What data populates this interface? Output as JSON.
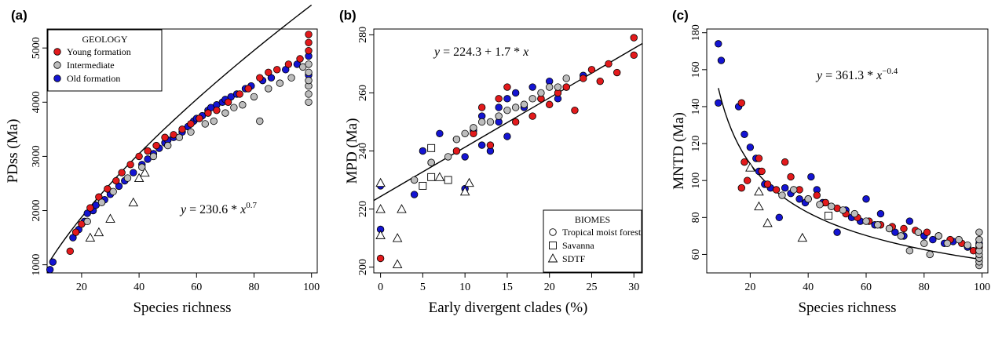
{
  "colors": {
    "young": "#e31a1c",
    "intermediate": "#bdbdbd",
    "old": "#1414d2",
    "stroke": "#000000"
  },
  "chart_data": [
    {
      "type": "scatter",
      "panel_label": "(a)",
      "xlabel": "Species richness",
      "ylabel": "PDss (Ma)",
      "xlim": [
        8,
        102
      ],
      "ylim": [
        850,
        5350
      ],
      "xticks": [
        20,
        40,
        60,
        80,
        100
      ],
      "yticks": [
        1000,
        2000,
        3000,
        4000,
        5000
      ],
      "equation": {
        "lhs": "y",
        "mid": " = 230.6 * ",
        "var": "x",
        "exp": "0.7"
      },
      "fit": {
        "kind": "power",
        "a": 230.6,
        "b": 0.7,
        "x_range": [
          9,
          100
        ]
      },
      "legend": {
        "position": "top-left",
        "title": "GEOLOGY",
        "entries": [
          {
            "label": "Young formation",
            "color_key": "young"
          },
          {
            "label": "Intermediate",
            "color_key": "intermediate"
          },
          {
            "label": "Old formation",
            "color_key": "old"
          }
        ]
      },
      "series": [
        {
          "color_key": "old",
          "shape": "circle",
          "x": [
            9,
            10,
            17,
            19,
            21,
            22,
            24,
            25,
            28,
            30,
            33,
            35,
            38,
            41,
            43,
            45,
            47,
            49,
            50,
            52,
            55,
            57,
            59,
            60,
            62,
            64,
            65,
            67,
            69,
            70,
            72,
            74,
            77,
            79,
            83,
            86,
            91,
            95,
            99,
            99
          ],
          "y": [
            910,
            1050,
            1500,
            1650,
            1800,
            1950,
            2000,
            2100,
            2200,
            2300,
            2450,
            2550,
            2700,
            2850,
            2950,
            3050,
            3150,
            3250,
            3300,
            3350,
            3450,
            3550,
            3650,
            3700,
            3750,
            3850,
            3900,
            3950,
            4000,
            4050,
            4100,
            4150,
            4250,
            4300,
            4400,
            4450,
            4600,
            4700,
            4500,
            4850
          ]
        },
        {
          "color_key": "young",
          "shape": "circle",
          "x": [
            16,
            18,
            20,
            23,
            26,
            29,
            32,
            34,
            37,
            40,
            43,
            46,
            49,
            52,
            55,
            58,
            61,
            64,
            67,
            71,
            75,
            78,
            82,
            85,
            88,
            92,
            96,
            99,
            99,
            99
          ],
          "y": [
            1250,
            1600,
            1750,
            2050,
            2250,
            2400,
            2550,
            2700,
            2850,
            3000,
            3100,
            3200,
            3350,
            3400,
            3500,
            3600,
            3700,
            3800,
            3850,
            4000,
            4150,
            4250,
            4450,
            4550,
            4600,
            4700,
            4800,
            4950,
            5100,
            5250
          ]
        },
        {
          "color_key": "intermediate",
          "shape": "circle",
          "x": [
            22,
            27,
            31,
            36,
            41,
            45,
            50,
            54,
            58,
            63,
            66,
            70,
            73,
            76,
            80,
            82,
            85,
            89,
            93,
            97,
            99,
            99,
            99,
            99,
            99,
            99
          ],
          "y": [
            1800,
            2150,
            2350,
            2600,
            2800,
            3000,
            3200,
            3350,
            3450,
            3600,
            3650,
            3800,
            3900,
            3950,
            4100,
            3650,
            4250,
            4350,
            4450,
            4650,
            4000,
            4150,
            4300,
            4400,
            4550,
            4700
          ]
        },
        {
          "color_key": "none",
          "shape": "triangle",
          "x": [
            23,
            26,
            30,
            38,
            40,
            42
          ],
          "y": [
            1500,
            1600,
            1850,
            2150,
            2600,
            2700
          ]
        }
      ]
    },
    {
      "type": "scatter",
      "panel_label": "(b)",
      "xlabel": "Early divergent clades (%)",
      "ylabel": "MPD (Ma)",
      "xlim": [
        -0.8,
        31
      ],
      "ylim": [
        198,
        282
      ],
      "xticks": [
        0,
        5,
        10,
        15,
        20,
        25,
        30
      ],
      "yticks": [
        200,
        220,
        240,
        260,
        280
      ],
      "equation": {
        "lhs": "y",
        "mid": " = 224.3 + 1.7 * ",
        "var": "x",
        "exp": ""
      },
      "fit": {
        "kind": "linear",
        "a": 224.3,
        "b": 1.7,
        "x_range": [
          -0.8,
          31
        ]
      },
      "legend": {
        "position": "bottom-right",
        "title": "BIOMES",
        "entries": [
          {
            "label": "Tropical moist forest",
            "shape": "circle"
          },
          {
            "label": "Savanna",
            "shape": "square"
          },
          {
            "label": "SDTF",
            "shape": "triangle"
          }
        ]
      },
      "series": [
        {
          "color_key": "old",
          "shape": "circle",
          "x": [
            0,
            0,
            4,
            5,
            6,
            7,
            8,
            9,
            10,
            10,
            11,
            12,
            12,
            13,
            14,
            14,
            15,
            15,
            16,
            17,
            18,
            19,
            20,
            21,
            22,
            24
          ],
          "y": [
            213,
            228,
            225,
            240,
            236,
            246,
            230,
            244,
            227,
            238,
            247,
            242,
            252,
            240,
            250,
            255,
            245,
            258,
            260,
            255,
            262,
            258,
            264,
            258,
            262,
            266
          ]
        },
        {
          "color_key": "young",
          "shape": "circle",
          "x": [
            0,
            6,
            9,
            11,
            12,
            13,
            14,
            15,
            16,
            17,
            18,
            19,
            20,
            21,
            22,
            23,
            24,
            25,
            26,
            27,
            28,
            30,
            30
          ],
          "y": [
            203,
            236,
            240,
            246,
            255,
            242,
            258,
            262,
            250,
            256,
            252,
            258,
            256,
            260,
            262,
            254,
            265,
            268,
            264,
            270,
            267,
            279,
            273
          ]
        },
        {
          "color_key": "intermediate",
          "shape": "circle",
          "x": [
            4,
            6,
            8,
            9,
            10,
            11,
            12,
            13,
            14,
            15,
            16,
            17,
            18,
            19,
            20,
            21,
            22
          ],
          "y": [
            230,
            236,
            238,
            244,
            246,
            248,
            250,
            250,
            252,
            254,
            255,
            256,
            258,
            260,
            262,
            262,
            265
          ]
        },
        {
          "color_key": "none",
          "shape": "square",
          "x": [
            5,
            6,
            6,
            8
          ],
          "y": [
            228,
            231,
            241,
            230
          ]
        },
        {
          "color_key": "none",
          "shape": "triangle",
          "x": [
            0,
            0,
            0,
            2,
            2,
            2.5,
            7,
            10,
            10.5
          ],
          "y": [
            229,
            220,
            211,
            201,
            210,
            220,
            231,
            226,
            229
          ]
        }
      ]
    },
    {
      "type": "scatter",
      "panel_label": "(c)",
      "xlabel": "Species richness",
      "ylabel": "MNTD (Ma)",
      "xlim": [
        5,
        102
      ],
      "ylim": [
        50,
        182
      ],
      "xticks": [
        20,
        40,
        60,
        80,
        100
      ],
      "yticks": [
        60,
        80,
        100,
        120,
        140,
        160,
        180
      ],
      "equation": {
        "lhs": "y",
        "mid": " = 361.3 * ",
        "var": "x",
        "exp": "−0.4"
      },
      "fit": {
        "kind": "power",
        "a": 361.3,
        "b": -0.4,
        "x_range": [
          9,
          100
        ]
      },
      "series": [
        {
          "color_key": "old",
          "shape": "circle",
          "x": [
            9,
            10,
            9,
            16,
            18,
            20,
            22,
            23,
            25,
            27,
            30,
            32,
            34,
            37,
            39,
            41,
            43,
            45,
            48,
            50,
            53,
            55,
            58,
            60,
            63,
            65,
            68,
            70,
            73,
            75,
            78,
            80,
            83,
            87,
            90,
            95,
            99
          ],
          "y": [
            174,
            165,
            142,
            140,
            125,
            118,
            112,
            105,
            98,
            96,
            80,
            96,
            93,
            90,
            88,
            102,
            95,
            88,
            86,
            72,
            84,
            80,
            78,
            90,
            76,
            82,
            74,
            72,
            70,
            78,
            72,
            70,
            68,
            66,
            67,
            64,
            66
          ]
        },
        {
          "color_key": "young",
          "shape": "circle",
          "x": [
            17,
            17,
            18,
            19,
            23,
            24,
            26,
            29,
            32,
            34,
            37,
            40,
            43,
            46,
            50,
            53,
            57,
            61,
            65,
            69,
            73,
            77,
            81,
            85,
            89,
            93,
            97,
            99,
            99
          ],
          "y": [
            142,
            96,
            110,
            100,
            112,
            105,
            98,
            95,
            110,
            102,
            95,
            90,
            92,
            88,
            85,
            82,
            80,
            78,
            76,
            75,
            74,
            73,
            72,
            70,
            68,
            66,
            62,
            58,
            64
          ]
        },
        {
          "color_key": "intermediate",
          "shape": "circle",
          "x": [
            31,
            35,
            40,
            44,
            48,
            52,
            56,
            60,
            64,
            68,
            72,
            75,
            78,
            80,
            82,
            85,
            88,
            92,
            95,
            99,
            99,
            99,
            99,
            99,
            99,
            99,
            99
          ],
          "y": [
            92,
            95,
            90,
            87,
            86,
            84,
            82,
            78,
            76,
            74,
            70,
            62,
            72,
            66,
            60,
            70,
            66,
            68,
            65,
            54,
            56,
            58,
            60,
            62,
            65,
            68,
            72
          ]
        },
        {
          "color_key": "none",
          "shape": "triangle",
          "x": [
            20,
            23,
            23,
            26,
            38
          ],
          "y": [
            107,
            94,
            86,
            77,
            69
          ]
        },
        {
          "color_key": "none",
          "shape": "square",
          "x": [
            47
          ],
          "y": [
            81
          ]
        }
      ]
    }
  ]
}
